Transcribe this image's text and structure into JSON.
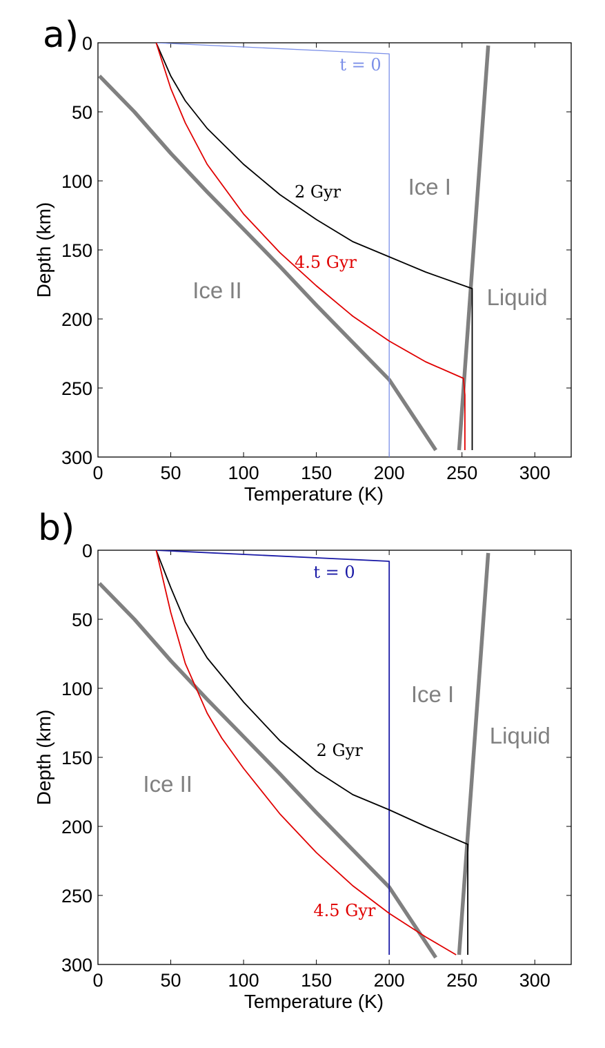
{
  "chart_data": [
    {
      "type": "line",
      "panel_label": "a)",
      "xlabel": "Temperature (K)",
      "ylabel": "Depth (km)",
      "xlim": [
        0,
        325
      ],
      "ylim": [
        300,
        0
      ],
      "xticks": [
        0,
        50,
        100,
        150,
        200,
        250,
        300
      ],
      "yticks": [
        0,
        50,
        100,
        150,
        200,
        250,
        300
      ],
      "grid": false,
      "colors": {
        "t0": "#7b8fe8",
        "gyr2": "#000000",
        "gyr45": "#e00000",
        "phase": "#808080"
      },
      "series": [
        {
          "name": "t = 0",
          "key": "t0",
          "x": [
            40,
            200,
            200
          ],
          "y": [
            0,
            8,
            300
          ]
        },
        {
          "name": "2 Gyr",
          "key": "gyr2",
          "x": [
            40,
            50,
            60,
            75,
            100,
            125,
            150,
            175,
            200,
            225,
            257,
            257
          ],
          "y": [
            0,
            24,
            42,
            62,
            88,
            110,
            128,
            144,
            155,
            166,
            178,
            295
          ]
        },
        {
          "name": "4.5 Gyr",
          "key": "gyr45",
          "x": [
            40,
            50,
            60,
            75,
            100,
            125,
            150,
            175,
            200,
            225,
            251,
            252,
            252
          ],
          "y": [
            0,
            33,
            58,
            88,
            124,
            152,
            176,
            198,
            216,
            231,
            243,
            255,
            295
          ]
        }
      ],
      "phase_boundaries": [
        {
          "x": [
            1,
            25,
            50,
            75,
            100,
            125,
            150,
            175,
            200,
            232
          ],
          "y": [
            24,
            50,
            80,
            108,
            135,
            162,
            190,
            217,
            244,
            295
          ]
        },
        {
          "x": [
            248,
            268
          ],
          "y": [
            295,
            2
          ]
        }
      ],
      "annotations": [
        "t = 0",
        "2 Gyr",
        "4.5 Gyr",
        "Ice I",
        "Ice II",
        "Liquid"
      ]
    },
    {
      "type": "line",
      "panel_label": "b)",
      "xlabel": "Temperature (K)",
      "ylabel": "Depth (km)",
      "xlim": [
        0,
        325
      ],
      "ylim": [
        300,
        0
      ],
      "xticks": [
        0,
        50,
        100,
        150,
        200,
        250,
        300
      ],
      "yticks": [
        0,
        50,
        100,
        150,
        200,
        250,
        300
      ],
      "grid": false,
      "colors": {
        "t0": "#1a1aa6",
        "gyr2": "#000000",
        "gyr45": "#e00000",
        "phase": "#808080"
      },
      "series": [
        {
          "name": "t = 0",
          "key": "t0",
          "x": [
            40,
            200,
            200
          ],
          "y": [
            0,
            8,
            293
          ]
        },
        {
          "name": "2 Gyr",
          "key": "gyr2",
          "x": [
            40,
            50,
            60,
            75,
            100,
            125,
            150,
            175,
            200,
            225,
            254,
            254
          ],
          "y": [
            0,
            27,
            52,
            78,
            110,
            138,
            160,
            177,
            188,
            200,
            213,
            293
          ]
        },
        {
          "name": "4.5 Gyr",
          "key": "gyr45",
          "x": [
            40,
            50,
            60,
            75,
            85,
            100,
            125,
            150,
            175,
            200,
            225,
            246
          ],
          "y": [
            0,
            45,
            82,
            118,
            136,
            158,
            191,
            219,
            243,
            263,
            280,
            293
          ]
        }
      ],
      "phase_boundaries": [
        {
          "x": [
            1,
            25,
            50,
            75,
            100,
            125,
            150,
            175,
            200,
            232
          ],
          "y": [
            24,
            50,
            80,
            108,
            135,
            162,
            190,
            217,
            244,
            295
          ]
        },
        {
          "x": [
            248,
            268
          ],
          "y": [
            293,
            2
          ]
        }
      ],
      "annotations": [
        "t = 0",
        "2 Gyr",
        "4.5 Gyr",
        "Ice I",
        "Ice II",
        "Liquid"
      ]
    }
  ]
}
